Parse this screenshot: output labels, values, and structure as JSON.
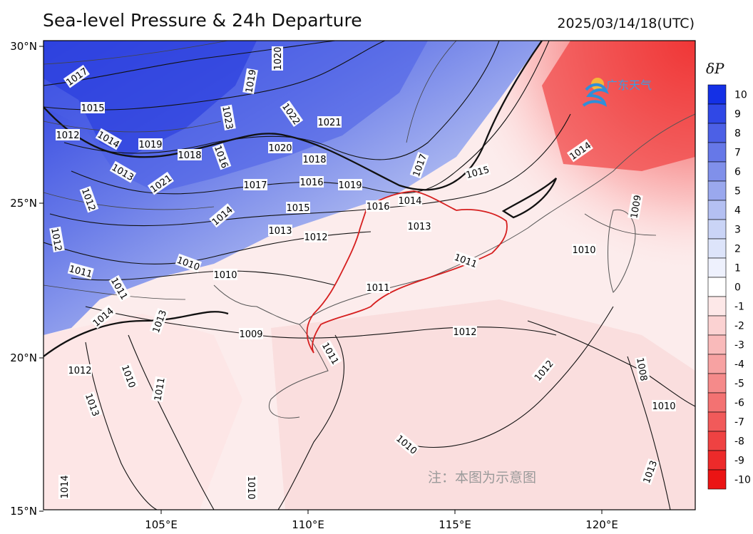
{
  "title": "Sea-level Pressure & 24h Departure",
  "datetime": "2025/03/14/18(UTC)",
  "colorbar": {
    "title": "δP",
    "ticks": [
      "10",
      "9",
      "8",
      "7",
      "6",
      "5",
      "4",
      "3",
      "2",
      "1",
      "0",
      "-1",
      "-2",
      "-3",
      "-4",
      "-5",
      "-6",
      "-7",
      "-8",
      "-9",
      "-10"
    ],
    "colors": [
      "#1430e6",
      "#3048e6",
      "#4c60e6",
      "#6678e8",
      "#8090ea",
      "#9aa8ee",
      "#b4c0f2",
      "#cad4f6",
      "#dde4fa",
      "#eef1fd",
      "#ffffff",
      "#fde8e8",
      "#fbd2d2",
      "#f9baba",
      "#f7a2a2",
      "#f58a8a",
      "#f37272",
      "#f15a5a",
      "#ef4242",
      "#ed2a2a",
      "#eb1414"
    ]
  },
  "axes": {
    "lat_labels": [
      "30°N",
      "25°N",
      "20°N",
      "15°N"
    ],
    "lon_labels": [
      "105°E",
      "110°E",
      "115°E",
      "120°E"
    ]
  },
  "isobar_labels": [
    "1017",
    "1015",
    "1012",
    "1014",
    "1013",
    "1019",
    "1018",
    "1016",
    "1021",
    "1020",
    "1019",
    "1023",
    "1022",
    "1021",
    "1020",
    "1018",
    "1017",
    "1016",
    "1019",
    "1017",
    "1015",
    "1014",
    "1015",
    "1013",
    "1012",
    "1016",
    "1014",
    "1013",
    "1012",
    "1012",
    "1011",
    "1010",
    "1011",
    "1010",
    "1009",
    "1013",
    "1014",
    "1011",
    "1012",
    "1010",
    "1009",
    "1011",
    "1012",
    "1010",
    "1008",
    "1010",
    "1011",
    "1012",
    "1013",
    "1010",
    "1014",
    "1013",
    "1010",
    "1014",
    "1011"
  ],
  "logo_text": "广东天气",
  "watermark": "注：本图为示意图"
}
